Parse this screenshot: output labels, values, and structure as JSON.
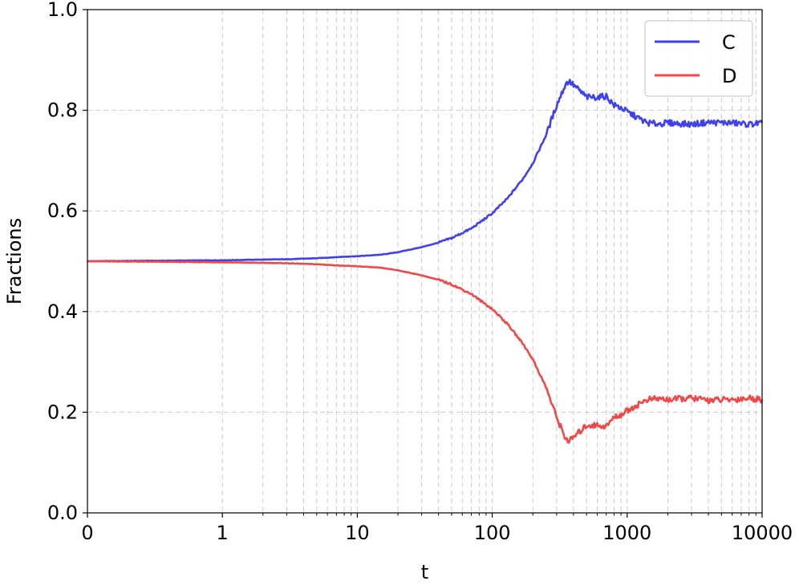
{
  "chart_data": {
    "type": "line",
    "xlabel": "t",
    "ylabel": "Fractions",
    "x_scale": "symlog",
    "xlim": [
      0,
      10000
    ],
    "ylim": [
      0.0,
      1.0
    ],
    "x_ticks": [
      {
        "value": 0,
        "label": "0"
      },
      {
        "value": 1,
        "label": "1"
      },
      {
        "value": 10,
        "label": "10"
      },
      {
        "value": 100,
        "label": "100"
      },
      {
        "value": 1000,
        "label": "1000"
      },
      {
        "value": 10000,
        "label": "10000"
      }
    ],
    "y_ticks": [
      {
        "value": 0.0,
        "label": "0.0"
      },
      {
        "value": 0.2,
        "label": "0.2"
      },
      {
        "value": 0.4,
        "label": "0.4"
      },
      {
        "value": 0.6,
        "label": "0.6"
      },
      {
        "value": 0.8,
        "label": "0.8"
      },
      {
        "value": 1.0,
        "label": "1.0"
      }
    ],
    "grid": true,
    "legend_position": "top-right",
    "series": [
      {
        "name": "C",
        "color": "#4040ee",
        "points": [
          [
            0,
            0.5
          ],
          [
            1,
            0.502
          ],
          [
            3,
            0.504
          ],
          [
            5,
            0.506
          ],
          [
            8,
            0.509
          ],
          [
            10,
            0.51
          ],
          [
            15,
            0.513
          ],
          [
            20,
            0.518
          ],
          [
            30,
            0.528
          ],
          [
            40,
            0.537
          ],
          [
            50,
            0.546
          ],
          [
            70,
            0.565
          ],
          [
            100,
            0.595
          ],
          [
            130,
            0.625
          ],
          [
            170,
            0.665
          ],
          [
            200,
            0.695
          ],
          [
            250,
            0.75
          ],
          [
            300,
            0.81
          ],
          [
            350,
            0.852
          ],
          [
            370,
            0.858
          ],
          [
            420,
            0.845
          ],
          [
            500,
            0.826
          ],
          [
            600,
            0.826
          ],
          [
            700,
            0.828
          ],
          [
            800,
            0.81
          ],
          [
            900,
            0.805
          ],
          [
            1000,
            0.797
          ],
          [
            1200,
            0.785
          ],
          [
            1400,
            0.775
          ],
          [
            1700,
            0.773
          ],
          [
            2000,
            0.775
          ],
          [
            3000,
            0.772
          ],
          [
            4000,
            0.776
          ],
          [
            6000,
            0.775
          ],
          [
            8000,
            0.772
          ],
          [
            10000,
            0.775
          ]
        ]
      },
      {
        "name": "D",
        "color": "#f04848",
        "points": [
          [
            0,
            0.5
          ],
          [
            1,
            0.498
          ],
          [
            3,
            0.496
          ],
          [
            5,
            0.494
          ],
          [
            8,
            0.491
          ],
          [
            10,
            0.49
          ],
          [
            15,
            0.487
          ],
          [
            20,
            0.482
          ],
          [
            30,
            0.472
          ],
          [
            40,
            0.463
          ],
          [
            50,
            0.454
          ],
          [
            70,
            0.435
          ],
          [
            100,
            0.405
          ],
          [
            130,
            0.375
          ],
          [
            170,
            0.335
          ],
          [
            200,
            0.305
          ],
          [
            250,
            0.25
          ],
          [
            300,
            0.19
          ],
          [
            350,
            0.148
          ],
          [
            370,
            0.142
          ],
          [
            420,
            0.155
          ],
          [
            500,
            0.174
          ],
          [
            600,
            0.174
          ],
          [
            700,
            0.172
          ],
          [
            800,
            0.19
          ],
          [
            900,
            0.195
          ],
          [
            1000,
            0.203
          ],
          [
            1200,
            0.215
          ],
          [
            1400,
            0.225
          ],
          [
            1700,
            0.227
          ],
          [
            2000,
            0.225
          ],
          [
            3000,
            0.228
          ],
          [
            4000,
            0.224
          ],
          [
            6000,
            0.225
          ],
          [
            8000,
            0.228
          ],
          [
            10000,
            0.225
          ]
        ]
      }
    ]
  }
}
